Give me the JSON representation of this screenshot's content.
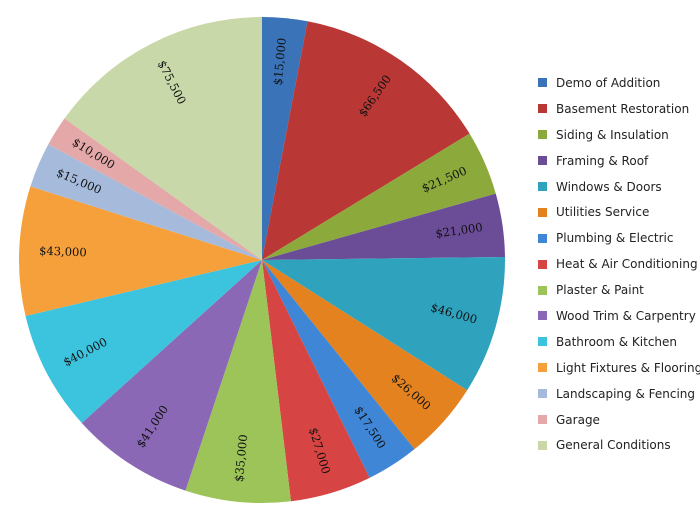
{
  "chart_data": {
    "type": "pie",
    "title": "",
    "legend_position": "right",
    "start_angle_deg": 0,
    "direction": "clockwise",
    "slices": [
      {
        "name": "Demo of Addition",
        "value": 15000,
        "label": "$15,000",
        "color": "#3a73b8"
      },
      {
        "name": "Basement Restoration",
        "value": 66500,
        "label": "$66,500",
        "color": "#b93735"
      },
      {
        "name": "Siding & Insulation",
        "value": 21500,
        "label": "$21,500",
        "color": "#8caa3c"
      },
      {
        "name": "Framing & Roof",
        "value": 21000,
        "label": "$21,000",
        "color": "#6b4c97"
      },
      {
        "name": "Windows & Doors",
        "value": 46000,
        "label": "$46,000",
        "color": "#2fa2bd"
      },
      {
        "name": "Utilities Service",
        "value": 26000,
        "label": "$26,000",
        "color": "#e3821f"
      },
      {
        "name": "Plumbing & Electric",
        "value": 17500,
        "label": "$17,500",
        "color": "#3f86d6"
      },
      {
        "name": "Heat & Air Conditioning",
        "value": 27000,
        "label": "$27,000",
        "color": "#d64443"
      },
      {
        "name": "Plaster & Paint",
        "value": 35000,
        "label": "$35,000",
        "color": "#9cc458"
      },
      {
        "name": "Wood Trim & Carpentry",
        "value": 41000,
        "label": "$41,000",
        "color": "#8a68b5"
      },
      {
        "name": "Bathroom & Kitchen",
        "value": 40000,
        "label": "$40,000",
        "color": "#3cc3de"
      },
      {
        "name": "Light Fixtures & Flooring",
        "value": 43000,
        "label": "$43,000",
        "color": "#f6a03c"
      },
      {
        "name": "Landscaping & Fencing",
        "value": 15000,
        "label": "$15,000",
        "color": "#a6bbdb"
      },
      {
        "name": "Garage",
        "value": 10000,
        "label": "$10,000",
        "color": "#e4a8a8"
      },
      {
        "name": "General Conditions",
        "value": 75500,
        "label": "$75,500",
        "color": "#c8d8a8"
      }
    ]
  }
}
